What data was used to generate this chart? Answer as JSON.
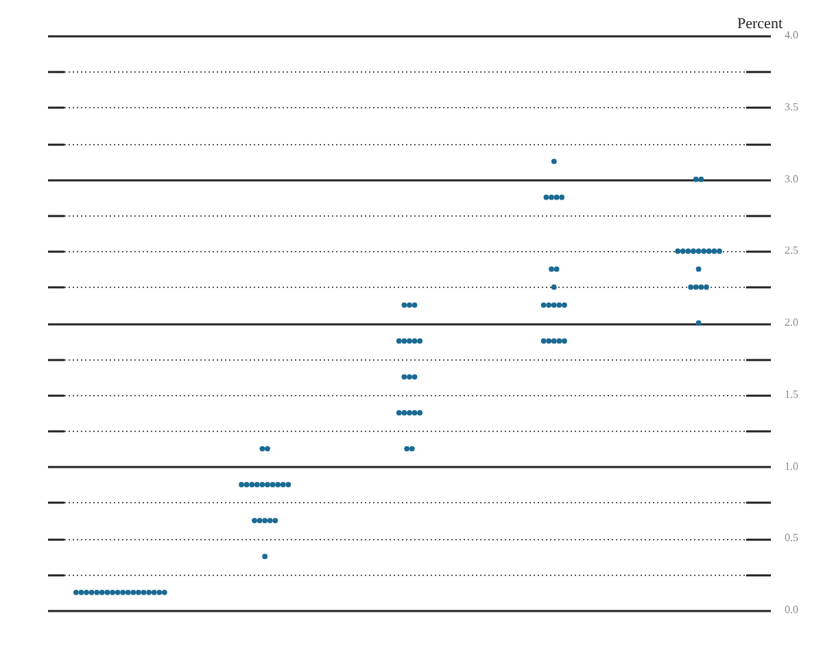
{
  "chart_data": {
    "type": "scatter",
    "ylabel": "Percent",
    "categories": [
      null,
      null,
      null,
      null,
      null
    ],
    "series": [
      {
        "color": "#1b6a94",
        "values": [
          0.125,
          0.375,
          1.125,
          1.875,
          2.0
        ]
      },
      {
        "color": "#1b6a94",
        "values": [
          0.125,
          0.625,
          1.125,
          1.875,
          2.25
        ]
      },
      {
        "color": "#1b6a94",
        "values": [
          0.125,
          0.625,
          1.375,
          1.875,
          2.25
        ]
      },
      {
        "color": "#1b6a94",
        "values": [
          0.125,
          0.625,
          1.375,
          1.875,
          2.25
        ]
      },
      {
        "color": "#1b6a94",
        "values": [
          0.125,
          0.625,
          1.375,
          1.875,
          2.25
        ]
      },
      {
        "color": "#1b6a94",
        "values": [
          0.125,
          0.625,
          1.375,
          2.125,
          2.375
        ]
      },
      {
        "color": "#1b6a94",
        "values": [
          0.125,
          0.875,
          1.375,
          2.125,
          2.5
        ]
      },
      {
        "color": "#1b6a94",
        "values": [
          0.125,
          0.875,
          1.625,
          2.125,
          2.5
        ]
      },
      {
        "color": "#1b6a94",
        "values": [
          0.125,
          0.875,
          1.625,
          2.125,
          2.5
        ]
      },
      {
        "color": "#1b6a94",
        "values": [
          0.125,
          0.875,
          1.625,
          2.125,
          2.5
        ]
      },
      {
        "color": "#1b6a94",
        "values": [
          0.125,
          0.875,
          1.875,
          2.25,
          2.5
        ]
      },
      {
        "color": "#1b6a94",
        "values": [
          0.125,
          0.875,
          1.875,
          2.375,
          2.5
        ]
      },
      {
        "color": "#1b6a94",
        "values": [
          0.125,
          0.875,
          1.875,
          2.375,
          2.5
        ]
      },
      {
        "color": "#1b6a94",
        "values": [
          0.125,
          0.875,
          1.875,
          2.875,
          2.5
        ]
      },
      {
        "color": "#1b6a94",
        "values": [
          0.125,
          0.875,
          1.875,
          2.875,
          2.5
        ]
      },
      {
        "color": "#1b6a94",
        "values": [
          0.125,
          0.875,
          2.125,
          2.875,
          3.0
        ]
      },
      {
        "color": "#1b6a94",
        "values": [
          0.125,
          1.125,
          2.125,
          2.875,
          3.0
        ]
      },
      {
        "color": "#1b6a94",
        "values": [
          0.125,
          1.125,
          2.125,
          3.125,
          null
        ]
      }
    ],
    "ylim": [
      0,
      4
    ],
    "yticks": [
      {
        "value": 0,
        "label": "0.0"
      },
      {
        "value": 0.25,
        "label": null
      },
      {
        "value": 0.5,
        "label": "0.5"
      },
      {
        "value": 0.75,
        "label": null
      },
      {
        "value": 1,
        "label": "1.0"
      },
      {
        "value": 1.25,
        "label": null
      },
      {
        "value": 1.5,
        "label": "1.5"
      },
      {
        "value": 1.75,
        "label": null
      },
      {
        "value": 2,
        "label": "2.0"
      },
      {
        "value": 2.25,
        "label": null
      },
      {
        "value": 2.5,
        "label": "2.5"
      },
      {
        "value": 2.75,
        "label": null
      },
      {
        "value": 3,
        "label": "3.0"
      },
      {
        "value": 3.25,
        "label": null
      },
      {
        "value": 3.5,
        "label": "3.5"
      },
      {
        "value": 3.75,
        "label": null
      },
      {
        "value": 4,
        "label": "4.0"
      }
    ],
    "grid": true,
    "marker": "circle",
    "legend": false
  }
}
